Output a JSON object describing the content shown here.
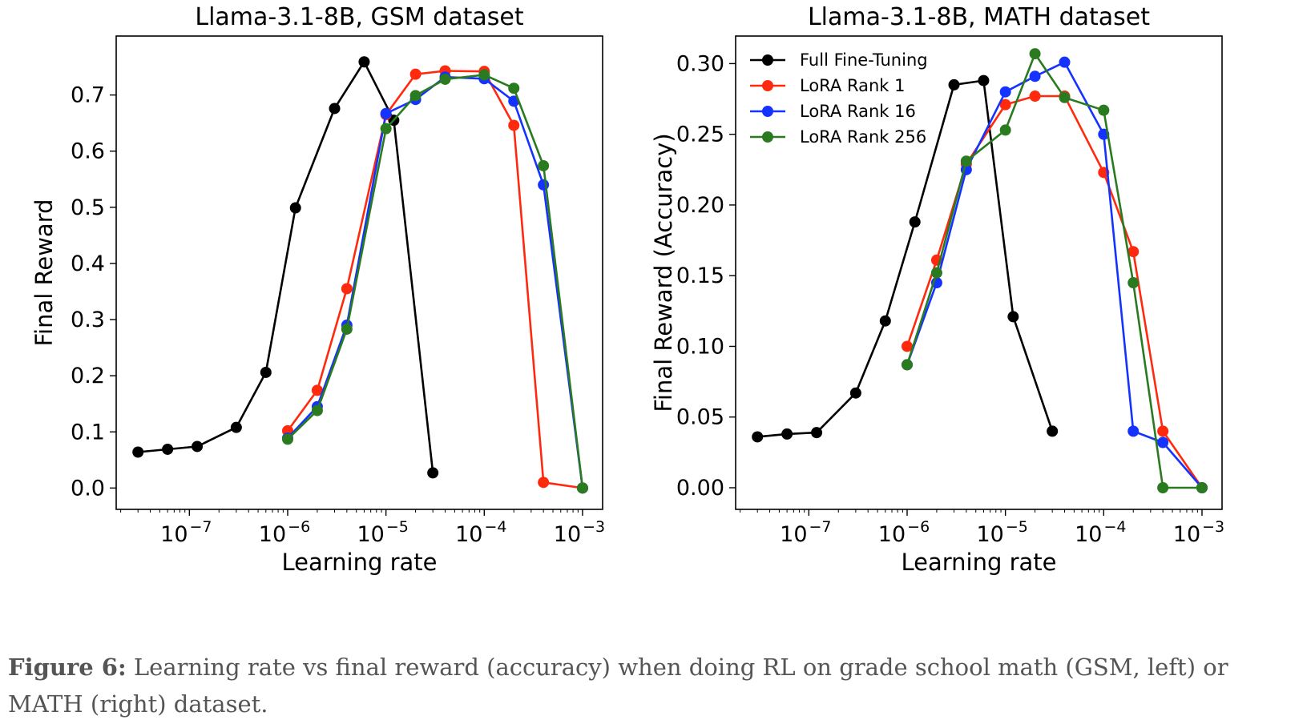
{
  "caption": {
    "label": "Figure 6:",
    "text": " Learning rate vs final reward (accuracy) when doing RL on grade school math (GSM, left) or MATH (right) dataset."
  },
  "chart_data": [
    {
      "type": "line",
      "title": "Llama-3.1-8B, GSM dataset",
      "xlabel": "Learning rate",
      "ylabel": "Final Reward",
      "xscale": "log",
      "xlim": [
        1.8e-08,
        0.0016
      ],
      "ylim": [
        -0.038,
        0.805
      ],
      "yticks": [
        0.0,
        0.1,
        0.2,
        0.3,
        0.4,
        0.5,
        0.6,
        0.7
      ],
      "ytick_labels": [
        "0.0",
        "0.1",
        "0.2",
        "0.3",
        "0.4",
        "0.5",
        "0.6",
        "0.7"
      ],
      "xticks": [
        -7,
        -6,
        -5,
        -4,
        -3
      ],
      "legend": null,
      "series": [
        {
          "name": "Full Fine-Tuning",
          "color": "#000000",
          "x": [
            3e-08,
            6e-08,
            1.2e-07,
            3e-07,
            6e-07,
            1.2e-06,
            3e-06,
            6e-06,
            1.2e-05,
            3e-05
          ],
          "y": [
            0.064,
            0.069,
            0.074,
            0.108,
            0.206,
            0.499,
            0.676,
            0.759,
            0.655,
            0.027
          ]
        },
        {
          "name": "LoRA Rank 1",
          "color": "#ff2a0e",
          "x": [
            1e-06,
            2e-06,
            4e-06,
            1e-05,
            2e-05,
            4e-05,
            0.0001,
            0.0002,
            0.0004,
            0.001
          ],
          "y": [
            0.102,
            0.174,
            0.355,
            0.665,
            0.737,
            0.743,
            0.742,
            0.646,
            0.01,
            0.0
          ]
        },
        {
          "name": "LoRA Rank 16",
          "color": "#1533ff",
          "x": [
            1e-06,
            2e-06,
            4e-06,
            1e-05,
            2e-05,
            4e-05,
            0.0001,
            0.0002,
            0.0004,
            0.001
          ],
          "y": [
            0.089,
            0.145,
            0.29,
            0.667,
            0.692,
            0.732,
            0.729,
            0.689,
            0.54,
            0.0
          ]
        },
        {
          "name": "LoRA Rank 256",
          "color": "#2a7a1f",
          "x": [
            1e-06,
            2e-06,
            4e-06,
            1e-05,
            2e-05,
            4e-05,
            0.0001,
            0.0002,
            0.0004,
            0.001
          ],
          "y": [
            0.087,
            0.138,
            0.283,
            0.64,
            0.699,
            0.728,
            0.736,
            0.712,
            0.574,
            0.0
          ]
        }
      ]
    },
    {
      "type": "line",
      "title": "Llama-3.1-8B, MATH dataset",
      "xlabel": "Learning rate",
      "ylabel": "Final Reward (Accuracy)",
      "xscale": "log",
      "xlim": [
        1.8e-08,
        0.0016
      ],
      "ylim": [
        -0.0153,
        0.3195
      ],
      "yticks": [
        0.0,
        0.05,
        0.1,
        0.15,
        0.2,
        0.25,
        0.3
      ],
      "ytick_labels": [
        "0.00",
        "0.05",
        "0.10",
        "0.15",
        "0.20",
        "0.25",
        "0.30"
      ],
      "xticks": [
        -7,
        -6,
        -5,
        -4,
        -3
      ],
      "legend": "top-left",
      "series": [
        {
          "name": "Full Fine-Tuning",
          "color": "#000000",
          "x": [
            3e-08,
            6e-08,
            1.2e-07,
            3e-07,
            6e-07,
            1.2e-06,
            3e-06,
            6e-06,
            1.2e-05,
            3e-05
          ],
          "y": [
            0.036,
            0.038,
            0.039,
            0.067,
            0.118,
            0.188,
            0.285,
            0.288,
            0.121,
            0.04
          ]
        },
        {
          "name": "LoRA Rank 1",
          "color": "#ff2a0e",
          "x": [
            1e-06,
            2e-06,
            4e-06,
            1e-05,
            2e-05,
            4e-05,
            0.0001,
            0.0002,
            0.0004,
            0.001
          ],
          "y": [
            0.1,
            0.161,
            0.229,
            0.271,
            0.277,
            0.277,
            0.223,
            0.167,
            0.04,
            0.0
          ]
        },
        {
          "name": "LoRA Rank 16",
          "color": "#1533ff",
          "x": [
            1e-06,
            2e-06,
            4e-06,
            1e-05,
            2e-05,
            4e-05,
            0.0001,
            0.0002,
            0.0004,
            0.001
          ],
          "y": [
            0.087,
            0.145,
            0.225,
            0.28,
            0.291,
            0.301,
            0.25,
            0.04,
            0.032,
            0.0
          ]
        },
        {
          "name": "LoRA Rank 256",
          "color": "#2a7a1f",
          "x": [
            1e-06,
            2e-06,
            4e-06,
            1e-05,
            2e-05,
            4e-05,
            0.0001,
            0.0002,
            0.0004,
            0.001
          ],
          "y": [
            0.087,
            0.152,
            0.231,
            0.253,
            0.307,
            0.276,
            0.267,
            0.145,
            0.0,
            0.0
          ]
        }
      ]
    }
  ]
}
